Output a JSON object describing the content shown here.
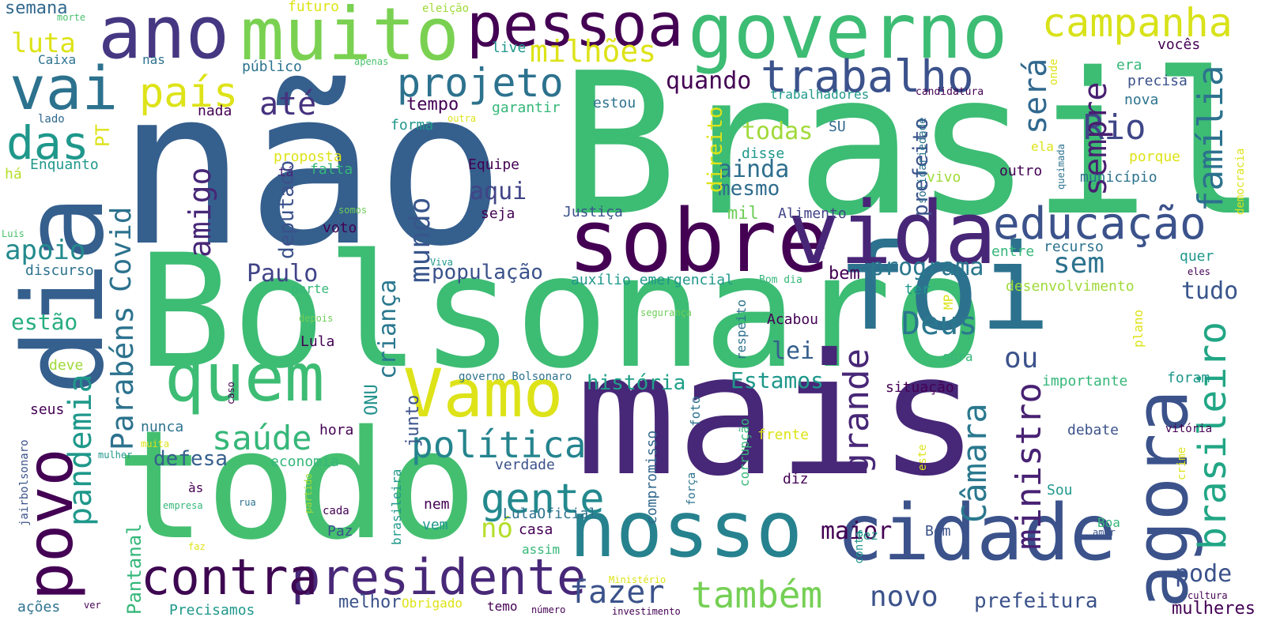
{
  "background": "#ffffff",
  "words": [
    {
      "text": "não",
      "color": "#355f8d"
    },
    {
      "text": "Brasil",
      "color": "#3dbc74"
    },
    {
      "text": "Bolsonaro",
      "color": "#3dbc74"
    },
    {
      "text": "mais",
      "color": "#472777"
    },
    {
      "text": "todo",
      "color": "#44bf70"
    },
    {
      "text": "foi",
      "color": "#2c728e"
    },
    {
      "text": "dia",
      "color": "#355f8d"
    },
    {
      "text": "sobre",
      "color": "#440154"
    },
    {
      "text": "vida",
      "color": "#482677"
    },
    {
      "text": "governo",
      "color": "#3dbc74"
    },
    {
      "text": "nosso",
      "color": "#26828e"
    },
    {
      "text": "cidade",
      "color": "#3b528b"
    },
    {
      "text": "ano",
      "color": "#453781"
    },
    {
      "text": "muito",
      "color": "#7ad151"
    },
    {
      "text": "Vamo",
      "color": "#dde318"
    },
    {
      "text": "quem",
      "color": "#3dbc74"
    },
    {
      "text": "agora",
      "color": "#3b528b"
    },
    {
      "text": "povo",
      "color": "#440154"
    },
    {
      "text": "vai",
      "color": "#2c728e"
    },
    {
      "text": "pessoa",
      "color": "#440154"
    },
    {
      "text": "presidente",
      "color": "#482878"
    },
    {
      "text": "contra",
      "color": "#3e0751"
    },
    {
      "text": "trabalho",
      "color": "#3b528b"
    },
    {
      "text": "campanha",
      "color": "#d8e219"
    },
    {
      "text": "educação",
      "color": "#3b528b"
    },
    {
      "text": "projeto",
      "color": "#2c728e"
    },
    {
      "text": "política",
      "color": "#25848e"
    },
    {
      "text": "também",
      "color": "#75d054"
    },
    {
      "text": "gente",
      "color": "#23898e"
    },
    {
      "text": "saúde",
      "color": "#35b779"
    },
    {
      "text": "das",
      "color": "#1f988b"
    },
    {
      "text": "país",
      "color": "#dde318"
    },
    {
      "text": "milhões",
      "color": "#dde318"
    },
    {
      "text": "brasileiro",
      "color": "#21a685"
    },
    {
      "text": "Câmara",
      "color": "#2a788e"
    },
    {
      "text": "família",
      "color": "#2c728e"
    },
    {
      "text": "ministro",
      "color": "#482173"
    },
    {
      "text": "grande",
      "color": "#482777"
    },
    {
      "text": "Deus",
      "color": "#2a778e"
    },
    {
      "text": "Rio",
      "color": "#3f4788"
    },
    {
      "text": "sempre",
      "color": "#481f71"
    },
    {
      "text": "será",
      "color": "#31688e"
    },
    {
      "text": "sem",
      "color": "#2c728e"
    },
    {
      "text": "fazer",
      "color": "#3b528b"
    },
    {
      "text": "novo",
      "color": "#3b528b"
    },
    {
      "text": "amigo",
      "color": "#482777"
    },
    {
      "text": "Parabéns",
      "color": "#2c728e"
    },
    {
      "text": "pandemia",
      "color": "#1f988b"
    },
    {
      "text": "Covid",
      "color": "#2c728e"
    },
    {
      "text": "mundo",
      "color": "#39568c"
    },
    {
      "text": "criança",
      "color": "#2a788e"
    },
    {
      "text": "até",
      "color": "#46327e"
    },
    {
      "text": "quando",
      "color": "#440154"
    },
    {
      "text": "apoio",
      "color": "#238a8d"
    },
    {
      "text": "luta",
      "color": "#dde318"
    },
    {
      "text": "estão",
      "color": "#27ad81"
    },
    {
      "text": "Paulo",
      "color": "#414487"
    },
    {
      "text": "população",
      "color": "#3b528b"
    },
    {
      "text": "aqui",
      "color": "#414487"
    },
    {
      "text": "nó",
      "color": "#b5de2b"
    },
    {
      "text": "todas",
      "color": "#a0da39"
    },
    {
      "text": "ainda",
      "color": "#2e6f8e"
    },
    {
      "text": "mesmo",
      "color": "#2f6c8e"
    },
    {
      "text": "programa",
      "color": "#2a778e"
    },
    {
      "text": "ou",
      "color": "#3b528b"
    },
    {
      "text": "tudo",
      "color": "#39558c"
    },
    {
      "text": "pode",
      "color": "#3b528b"
    },
    {
      "text": "maior",
      "color": "#440154"
    },
    {
      "text": "lei",
      "color": "#355f8d"
    },
    {
      "text": "história",
      "color": "#1fa088"
    },
    {
      "text": "Estamos",
      "color": "#1f988b"
    },
    {
      "text": "prefeitura",
      "color": "#3b528b"
    },
    {
      "text": "mulheres",
      "color": "#440154"
    },
    {
      "text": "deputado",
      "color": "#3b528b"
    },
    {
      "text": "direito",
      "color": "#dde318"
    },
    {
      "text": "prefeito",
      "color": "#3b528b"
    },
    {
      "text": "defesa",
      "color": "#355f8d"
    },
    {
      "text": "junto",
      "color": "#3b528b"
    },
    {
      "text": "Pantanal",
      "color": "#35b779"
    },
    {
      "text": "melhor",
      "color": "#3b528b"
    },
    {
      "text": "bem",
      "color": "#440154"
    },
    {
      "text": "mil",
      "color": "#6ece58"
    },
    {
      "text": "PT",
      "color": "#dde318"
    },
    {
      "text": "ONU",
      "color": "#21918c"
    },
    {
      "text": "tempo",
      "color": "#440154"
    },
    {
      "text": "semana",
      "color": "#31688e"
    },
    {
      "text": "futuro",
      "color": "#dde318"
    },
    {
      "text": "eleição",
      "color": "#a0da39"
    },
    {
      "text": "morte",
      "color": "#4ac16d"
    },
    {
      "text": "Caixa",
      "color": "#2c728e"
    },
    {
      "text": "nas",
      "color": "#2c728e"
    },
    {
      "text": "apenas",
      "color": "#4ac16d"
    },
    {
      "text": "público",
      "color": "#2c728e"
    },
    {
      "text": "live",
      "color": "#1f988b"
    },
    {
      "text": "lado",
      "color": "#31688e"
    },
    {
      "text": "nada",
      "color": "#440154"
    },
    {
      "text": "estou",
      "color": "#2c728e"
    },
    {
      "text": "garantir",
      "color": "#35b779"
    },
    {
      "text": "trabalhadores",
      "color": "#1f988b"
    },
    {
      "text": "candidatura",
      "color": "#440154"
    },
    {
      "text": "forma",
      "color": "#1f988b"
    },
    {
      "text": "outra",
      "color": "#dde318"
    },
    {
      "text": "há",
      "color": "#b5de2b"
    },
    {
      "text": "Enquanto",
      "color": "#1f988b"
    },
    {
      "text": "proposta",
      "color": "#dde318"
    },
    {
      "text": "tá",
      "color": "#472777"
    },
    {
      "text": "falta",
      "color": "#35b779"
    },
    {
      "text": "Equipe",
      "color": "#440154"
    },
    {
      "text": "seja",
      "color": "#440154"
    },
    {
      "text": "somos",
      "color": "#6ece58"
    },
    {
      "text": "voto",
      "color": "#440154"
    },
    {
      "text": "Justiça",
      "color": "#3b528b"
    },
    {
      "text": "Alimento",
      "color": "#414487"
    },
    {
      "text": "disse",
      "color": "#1f988b"
    },
    {
      "text": "SU",
      "color": "#31688e"
    },
    {
      "text": "solidariedade",
      "color": "#2c728e"
    },
    {
      "text": "vivo",
      "color": "#a0da39"
    },
    {
      "text": "outro",
      "color": "#440154"
    },
    {
      "text": "município",
      "color": "#2c728e"
    },
    {
      "text": "porque",
      "color": "#dde318"
    },
    {
      "text": "queimada",
      "color": "#2c728e"
    },
    {
      "text": "democracia",
      "color": "#dde318"
    },
    {
      "text": "ela",
      "color": "#dde318"
    },
    {
      "text": "nova",
      "color": "#2c728e"
    },
    {
      "text": "precisa",
      "color": "#3b528b"
    },
    {
      "text": "era",
      "color": "#35b779"
    },
    {
      "text": "onde",
      "color": "#dde318"
    },
    {
      "text": "vocês",
      "color": "#440154"
    },
    {
      "text": "Luis",
      "color": "#4ac16d"
    },
    {
      "text": "discurso",
      "color": "#2c728e"
    },
    {
      "text": "Viva",
      "color": "#1f988b"
    },
    {
      "text": "auxílio emergencial",
      "color": "#1f988b"
    },
    {
      "text": "Bom dia",
      "color": "#35b779"
    },
    {
      "text": "entre",
      "color": "#35b779"
    },
    {
      "text": "recurso",
      "color": "#2c728e"
    },
    {
      "text": "quer",
      "color": "#1f988b"
    },
    {
      "text": "eles",
      "color": "#440154"
    },
    {
      "text": "desenvolvimento",
      "color": "#a0da39"
    },
    {
      "text": "parte",
      "color": "#35b779"
    },
    {
      "text": "ter",
      "color": "#1f988b"
    },
    {
      "text": "MP",
      "color": "#dde318"
    },
    {
      "text": "deve",
      "color": "#a0da39"
    },
    {
      "text": "depois",
      "color": "#6ece58"
    },
    {
      "text": "segurança",
      "color": "#6ece58"
    },
    {
      "text": "respeito",
      "color": "#2c728e"
    },
    {
      "text": "Acabou",
      "color": "#440154"
    },
    {
      "text": "Lula",
      "color": "#440154"
    },
    {
      "text": "plano",
      "color": "#dde318"
    },
    {
      "text": "obra",
      "color": "#35b779"
    },
    {
      "text": "situação",
      "color": "#440154"
    },
    {
      "text": "importante",
      "color": "#35b779"
    },
    {
      "text": "foram",
      "color": "#1f988b"
    },
    {
      "text": "caso",
      "color": "#440154"
    },
    {
      "text": "governo Bolsonaro",
      "color": "#2c728e"
    },
    {
      "text": "seus",
      "color": "#440154"
    },
    {
      "text": "nunca",
      "color": "#2c728e"
    },
    {
      "text": "hora",
      "color": "#440154"
    },
    {
      "text": "foto",
      "color": "#2c728e"
    },
    {
      "text": "compromisso",
      "color": "#31688e"
    },
    {
      "text": "corrupção",
      "color": "#35b779"
    },
    {
      "text": "frente",
      "color": "#dde318"
    },
    {
      "text": "este",
      "color": "#dde318"
    },
    {
      "text": "debate",
      "color": "#3b528b"
    },
    {
      "text": "vitória",
      "color": "#440154"
    },
    {
      "text": "crime",
      "color": "#dde318"
    },
    {
      "text": "jairbolsonaro",
      "color": "#3b528b"
    },
    {
      "text": "muita",
      "color": "#dde318"
    },
    {
      "text": "mulher",
      "color": "#1f988b"
    },
    {
      "text": "economia",
      "color": "#35b779"
    },
    {
      "text": "verdade",
      "color": "#3b528b"
    },
    {
      "text": "força",
      "color": "#2c728e"
    },
    {
      "text": "diz",
      "color": "#440154"
    },
    {
      "text": "Sou",
      "color": "#1f988b"
    },
    {
      "text": "às",
      "color": "#440154"
    },
    {
      "text": "empresa",
      "color": "#35b779"
    },
    {
      "text": "rua",
      "color": "#2c728e"
    },
    {
      "text": "partido",
      "color": "#a0da39"
    },
    {
      "text": "nem",
      "color": "#440154"
    },
    {
      "text": "cada",
      "color": "#440154"
    },
    {
      "text": "LulaOficial",
      "color": "#2c728e"
    },
    {
      "text": "casa",
      "color": "#440154"
    },
    {
      "text": "vem",
      "color": "#1f988b"
    },
    {
      "text": "assim",
      "color": "#35b779"
    },
    {
      "text": "Paz",
      "color": "#3b528b"
    },
    {
      "text": "brasileira",
      "color": "#1f988b"
    },
    {
      "text": "conta",
      "color": "#1f988b"
    },
    {
      "text": "fez",
      "color": "#1f988b"
    },
    {
      "text": "Bom",
      "color": "#3b528b"
    },
    {
      "text": "Boa",
      "color": "#35b779"
    },
    {
      "text": "amor",
      "color": "#3b528b"
    },
    {
      "text": "faz",
      "color": "#dde318"
    },
    {
      "text": "ações",
      "color": "#2c728e"
    },
    {
      "text": "ver",
      "color": "#440154"
    },
    {
      "text": "Precisamos",
      "color": "#1f988b"
    },
    {
      "text": "Obrigado",
      "color": "#dde318"
    },
    {
      "text": "temo",
      "color": "#440154"
    },
    {
      "text": "número",
      "color": "#440154"
    },
    {
      "text": "Ministério",
      "color": "#dde318"
    },
    {
      "text": "investimento",
      "color": "#440154"
    },
    {
      "text": "cultura",
      "color": "#440154"
    }
  ]
}
